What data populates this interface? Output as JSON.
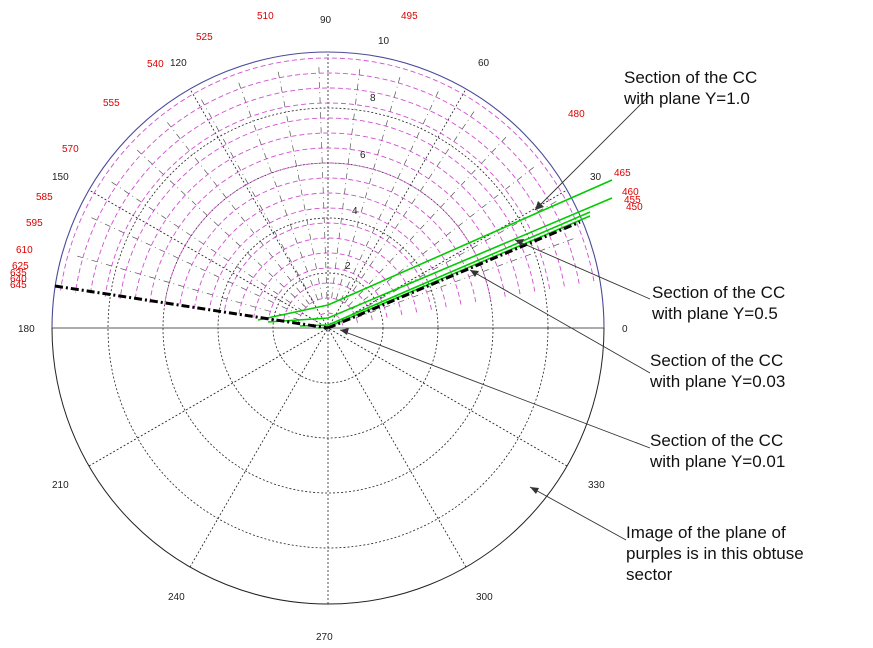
{
  "colors": {
    "circle": "#4a4a9a",
    "grid": "#222222",
    "locus": "#d050d0",
    "wavelength": "#e00000",
    "section_green": "#00cc00",
    "section_black": "#000000"
  },
  "angle_labels": [
    "0",
    "30",
    "60",
    "90",
    "120",
    "150",
    "180",
    "210",
    "240",
    "270",
    "300",
    "330"
  ],
  "radial_labels": [
    "10",
    "8",
    "6",
    "4",
    "2"
  ],
  "wavelength_labels": [
    "465",
    "480",
    "495",
    "510",
    "525",
    "540",
    "555",
    "570",
    "585",
    "595",
    "610",
    "625",
    "460",
    "455",
    "450",
    "635",
    "640",
    "645"
  ],
  "annotations": [
    {
      "text": "Section of the CC\nwith plane Y=1.0"
    },
    {
      "text": "Section of the CC\nwith plane Y=0.5"
    },
    {
      "text": "Section of the CC\nwith plane Y=0.03"
    },
    {
      "text": "Section of the CC\nwith plane Y=0.01"
    },
    {
      "text": "Image of the plane of\npurples is in this obtuse\nsector"
    }
  ]
}
